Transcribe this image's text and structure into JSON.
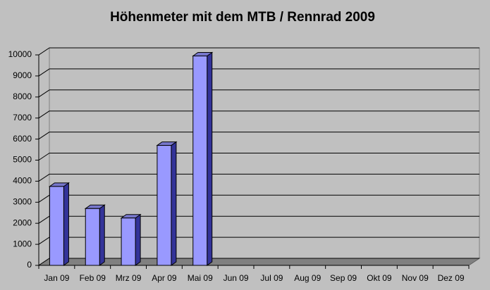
{
  "chart_data": {
    "type": "bar3d",
    "title": "Höhenmeter mit dem MTB / Rennrad 2009",
    "categories": [
      "Jan 09",
      "Feb 09",
      "Mrz 09",
      "Apr 09",
      "Mai 09",
      "Jun 09",
      "Jul 09",
      "Aug 09",
      "Sep 09",
      "Okt 09",
      "Nov 09",
      "Dez 09"
    ],
    "values": [
      3750,
      2700,
      2250,
      5700,
      9950,
      null,
      null,
      null,
      null,
      null,
      null,
      null
    ],
    "color": "#9999ff",
    "ylim": [
      0,
      10000
    ],
    "yticks": [
      0,
      1000,
      2000,
      3000,
      4000,
      5000,
      6000,
      7000,
      8000,
      9000,
      10000
    ],
    "grid": true
  }
}
